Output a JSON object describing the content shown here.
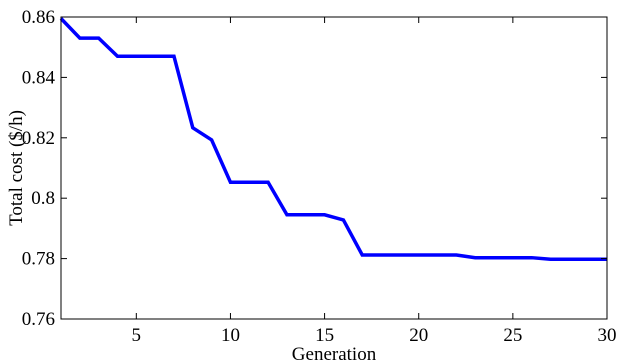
{
  "chart_data": {
    "type": "line",
    "title": "",
    "xlabel": "Generation",
    "ylabel": "Total cost ($/h)",
    "xlim": [
      1,
      30
    ],
    "ylim": [
      0.76,
      0.86
    ],
    "xticks": [
      5,
      10,
      15,
      20,
      25,
      30
    ],
    "xtick_labels": [
      "5",
      "10",
      "15",
      "20",
      "25",
      "30"
    ],
    "yticks": [
      0.76,
      0.78,
      0.8,
      0.82,
      0.84,
      0.86
    ],
    "ytick_labels": [
      "0.76",
      "0.78",
      "0.8",
      "0.82",
      "0.84",
      "0.86"
    ],
    "grid": false,
    "series": [
      {
        "color": "#0000ff",
        "x": [
          1,
          2,
          3,
          4,
          5,
          6,
          7,
          8,
          9,
          10,
          11,
          12,
          13,
          14,
          15,
          16,
          17,
          18,
          19,
          20,
          21,
          22,
          23,
          24,
          25,
          26,
          27,
          28,
          29,
          30
        ],
        "y": [
          0.8595,
          0.853,
          0.853,
          0.847,
          0.847,
          0.847,
          0.847,
          0.8233,
          0.8193,
          0.8053,
          0.8053,
          0.8053,
          0.7945,
          0.7945,
          0.7945,
          0.7928,
          0.7812,
          0.7812,
          0.7812,
          0.7812,
          0.7812,
          0.7812,
          0.7803,
          0.7803,
          0.7803,
          0.7803,
          0.7798,
          0.7798,
          0.7798,
          0.7798
        ]
      }
    ]
  }
}
